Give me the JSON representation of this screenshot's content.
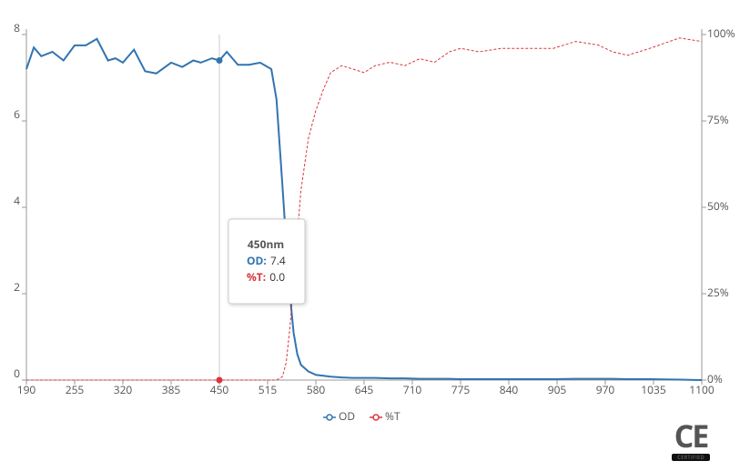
{
  "chart_data": {
    "type": "line",
    "x": [
      190,
      200,
      210,
      225,
      240,
      255,
      270,
      285,
      300,
      310,
      320,
      335,
      350,
      365,
      385,
      400,
      415,
      425,
      440,
      450,
      460,
      475,
      490,
      505,
      520,
      527,
      535,
      540,
      545,
      550,
      555,
      560,
      570,
      580,
      590,
      600,
      615,
      630,
      645,
      660,
      680,
      700,
      720,
      740,
      760,
      775,
      800,
      830,
      870,
      900,
      930,
      960,
      980,
      1000,
      1030,
      1070,
      1100
    ],
    "series": [
      {
        "name": "OD",
        "color": "#3274b0",
        "dashed": false,
        "values": [
          7.2,
          7.7,
          7.5,
          7.6,
          7.4,
          7.75,
          7.75,
          7.9,
          7.4,
          7.45,
          7.35,
          7.65,
          7.15,
          7.1,
          7.35,
          7.25,
          7.4,
          7.35,
          7.45,
          7.4,
          7.6,
          7.3,
          7.3,
          7.35,
          7.2,
          6.5,
          4.5,
          3.2,
          2.0,
          1.1,
          0.6,
          0.35,
          0.2,
          0.12,
          0.1,
          0.08,
          0.06,
          0.05,
          0.05,
          0.05,
          0.04,
          0.04,
          0.03,
          0.03,
          0.03,
          0.02,
          0.02,
          0.02,
          0.02,
          0.02,
          0.03,
          0.03,
          0.03,
          0.02,
          0.02,
          0.01,
          0.0
        ]
      },
      {
        "name": "%T",
        "color": "#d9363e",
        "dashed": true,
        "axis": "y2",
        "values": [
          0,
          0,
          0,
          0,
          0,
          0,
          0,
          0,
          0,
          0,
          0,
          0,
          0,
          0,
          0,
          0,
          0,
          0,
          0,
          0,
          0,
          0,
          0,
          0,
          0,
          0,
          1,
          5,
          15,
          28,
          42,
          55,
          70,
          78,
          84,
          89,
          91,
          90,
          89,
          91,
          92,
          91,
          93,
          92,
          95,
          96,
          95,
          96,
          96,
          96,
          98,
          97,
          95,
          94,
          96,
          99,
          98
        ]
      }
    ],
    "xlim": [
      190,
      1100
    ],
    "xticks": [
      190,
      255,
      320,
      385,
      450,
      515,
      580,
      645,
      710,
      775,
      840,
      905,
      970,
      1035,
      1100
    ],
    "ylim": [
      0,
      8
    ],
    "yticks": [
      0,
      2,
      4,
      6,
      8
    ],
    "y2lim": [
      0,
      100
    ],
    "y2ticks": [
      {
        "value": 0,
        "label": "0%"
      },
      {
        "value": 25,
        "label": "25%"
      },
      {
        "value": 50,
        "label": "50%"
      },
      {
        "value": 75,
        "label": "75%"
      },
      {
        "value": 100,
        "label": "100%"
      }
    ],
    "tooltip": {
      "title": "450nm",
      "rows": [
        {
          "label": "OD:",
          "value": "7.4"
        },
        {
          "label": "%T:",
          "value": "0.0"
        }
      ]
    },
    "badge": {
      "mark": "CE",
      "label": "CERTIFIED"
    }
  }
}
